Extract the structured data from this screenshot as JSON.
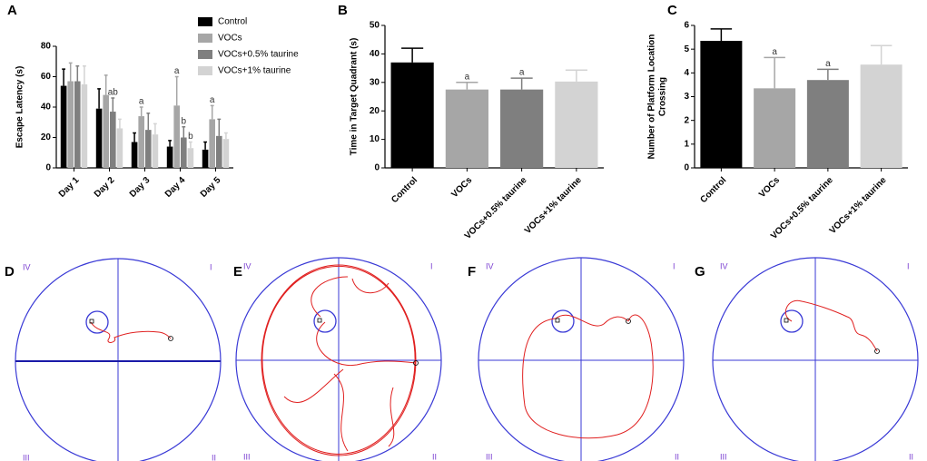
{
  "chart_data": [
    {
      "type": "bar",
      "panel": "A",
      "ylabel": "Escape Latency (s)",
      "categories": [
        "Day 1",
        "Day 2",
        "Day 3",
        "Day 4",
        "Day 5"
      ],
      "ylim": [
        0,
        80
      ],
      "yticks": [
        0,
        20,
        40,
        60,
        80
      ],
      "legend": "top-right",
      "series": [
        {
          "name": "Control",
          "color": "#000000",
          "values": [
            54,
            39,
            17,
            14,
            12
          ],
          "errors": [
            11,
            13,
            6,
            4,
            5
          ],
          "letters": [
            null,
            null,
            null,
            null,
            null
          ]
        },
        {
          "name": "VOCs",
          "color": "#a6a6a6",
          "values": [
            57,
            48,
            34,
            41,
            32
          ],
          "errors": [
            12,
            13,
            6,
            19,
            9
          ],
          "letters": [
            null,
            null,
            "a",
            "a",
            "a"
          ]
        },
        {
          "name": "VOCs+0.5% taurine",
          "color": "#7f7f7f",
          "values": [
            57,
            37,
            25,
            20,
            21
          ],
          "errors": [
            10,
            9,
            11,
            7,
            11
          ],
          "letters": [
            null,
            "ab",
            null,
            "b",
            null
          ]
        },
        {
          "name": "VOCs+1% taurine",
          "color": "#d3d3d3",
          "values": [
            55,
            26,
            22,
            13,
            19
          ],
          "errors": [
            12,
            6,
            7,
            4,
            4
          ],
          "letters": [
            null,
            null,
            null,
            "b",
            null
          ]
        }
      ]
    },
    {
      "type": "bar",
      "panel": "B",
      "ylabel": [
        "Time in Target Quadrant (s)"
      ],
      "categories": [
        "Control",
        "VOCs",
        "VOCs+0.5% taurine",
        "VOCs+1% taurine"
      ],
      "values": [
        37,
        27.5,
        27.5,
        30.3
      ],
      "errors": [
        5,
        2.5,
        4,
        4
      ],
      "letters": [
        null,
        "a",
        "a",
        null
      ],
      "colors": [
        "#000000",
        "#a6a6a6",
        "#7f7f7f",
        "#d3d3d3"
      ],
      "ylim": [
        0,
        50
      ],
      "yticks": [
        0,
        10,
        20,
        30,
        40,
        50
      ]
    },
    {
      "type": "bar",
      "panel": "C",
      "ylabel": [
        "Number of Platform Location",
        "Crossing"
      ],
      "categories": [
        "Control",
        "VOCs",
        "VOCs+0.5% taurine",
        "VOCs+1% taurine"
      ],
      "values": [
        5.35,
        3.35,
        3.7,
        4.35
      ],
      "errors": [
        0.5,
        1.3,
        0.45,
        0.8
      ],
      "letters": [
        null,
        "a",
        "a",
        null
      ],
      "colors": [
        "#000000",
        "#a6a6a6",
        "#7f7f7f",
        "#d3d3d3"
      ],
      "ylim": [
        0,
        6
      ],
      "yticks": [
        0,
        1,
        2,
        3,
        4,
        5,
        6
      ]
    }
  ],
  "swim_paths": [
    {
      "panel": "D",
      "quadrants": [
        "IV",
        "I",
        "III",
        "II"
      ]
    },
    {
      "panel": "E",
      "quadrants": [
        "IV",
        "I",
        "III",
        "II"
      ]
    },
    {
      "panel": "F",
      "quadrants": [
        "IV",
        "I",
        "III",
        "II"
      ]
    },
    {
      "panel": "G",
      "quadrants": [
        "IV",
        "I",
        "III",
        "II"
      ]
    }
  ]
}
